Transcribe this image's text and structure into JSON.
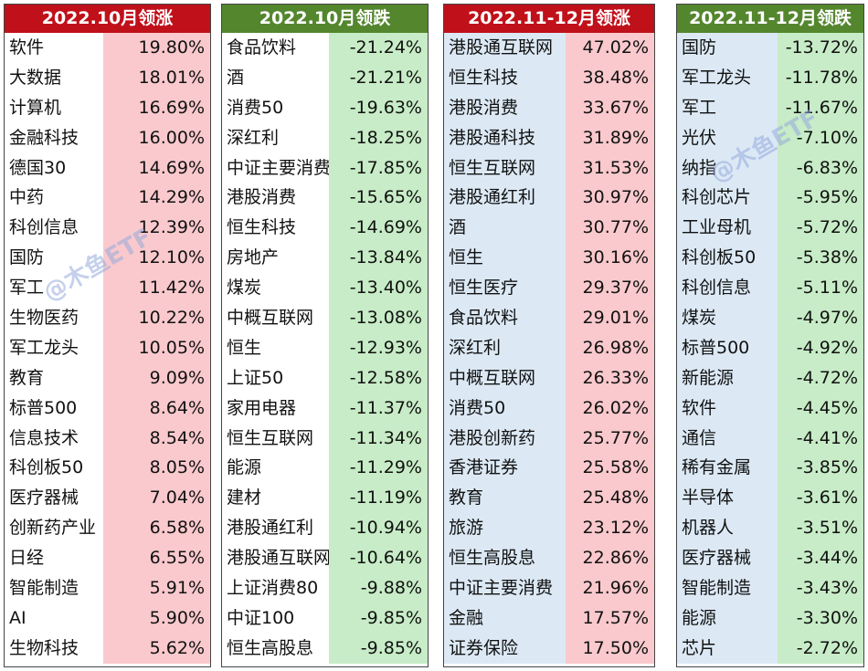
{
  "panels": [
    {
      "title": "2022.10月领涨",
      "rows": [
        {
          "name": "软件",
          "value": "19.80%"
        },
        {
          "name": "大数据",
          "value": "18.01%"
        },
        {
          "name": "计算机",
          "value": "16.69%"
        },
        {
          "name": "金融科技",
          "value": "16.00%"
        },
        {
          "name": "德国30",
          "value": "14.69%"
        },
        {
          "name": "中药",
          "value": "14.29%"
        },
        {
          "name": "科创信息",
          "value": "12.39%"
        },
        {
          "name": "国防",
          "value": "12.10%"
        },
        {
          "name": "军工",
          "value": "11.42%"
        },
        {
          "name": "生物医药",
          "value": "10.22%"
        },
        {
          "name": "军工龙头",
          "value": "10.05%"
        },
        {
          "name": "教育",
          "value": "9.09%"
        },
        {
          "name": "标普500",
          "value": "8.64%"
        },
        {
          "name": "信息技术",
          "value": "8.54%"
        },
        {
          "name": "科创板50",
          "value": "8.05%"
        },
        {
          "name": "医疗器械",
          "value": "7.04%"
        },
        {
          "name": "创新药产业",
          "value": "6.58%"
        },
        {
          "name": "日经",
          "value": "6.55%"
        },
        {
          "name": "智能制造",
          "value": "5.91%"
        },
        {
          "name": "AI",
          "value": "5.90%"
        },
        {
          "name": "生物科技",
          "value": "5.62%"
        }
      ]
    },
    {
      "title": "2022.10月领跌",
      "rows": [
        {
          "name": "食品饮料",
          "value": "-21.24%"
        },
        {
          "name": "酒",
          "value": "-21.21%"
        },
        {
          "name": "消费50",
          "value": "-19.63%"
        },
        {
          "name": "深红利",
          "value": "-18.25%"
        },
        {
          "name": "中证主要消费",
          "value": "-17.85%"
        },
        {
          "name": "港股消费",
          "value": "-15.65%"
        },
        {
          "name": "恒生科技",
          "value": "-14.69%"
        },
        {
          "name": "房地产",
          "value": "-13.84%"
        },
        {
          "name": "煤炭",
          "value": "-13.40%"
        },
        {
          "name": "中概互联网",
          "value": "-13.08%"
        },
        {
          "name": "恒生",
          "value": "-12.93%"
        },
        {
          "name": "上证50",
          "value": "-12.58%"
        },
        {
          "name": "家用电器",
          "value": "-11.37%"
        },
        {
          "name": "恒生互联网",
          "value": "-11.34%"
        },
        {
          "name": "能源",
          "value": "-11.29%"
        },
        {
          "name": "建材",
          "value": "-11.19%"
        },
        {
          "name": "港股通红利",
          "value": "-10.94%"
        },
        {
          "name": "港股通互联网",
          "value": "-10.64%"
        },
        {
          "name": "上证消费80",
          "value": "-9.88%"
        },
        {
          "name": "中证100",
          "value": "-9.85%"
        },
        {
          "name": "恒生高股息",
          "value": "-9.85%"
        }
      ]
    },
    {
      "title": "2022.11-12月领涨",
      "rows": [
        {
          "name": "港股通互联网",
          "value": "47.02%"
        },
        {
          "name": "恒生科技",
          "value": "38.48%"
        },
        {
          "name": "港股消费",
          "value": "33.67%"
        },
        {
          "name": "港股通科技",
          "value": "31.89%"
        },
        {
          "name": "恒生互联网",
          "value": "31.53%"
        },
        {
          "name": "港股通红利",
          "value": "30.97%"
        },
        {
          "name": "酒",
          "value": "30.77%"
        },
        {
          "name": "恒生",
          "value": "30.16%"
        },
        {
          "name": "恒生医疗",
          "value": "29.37%"
        },
        {
          "name": "食品饮料",
          "value": "29.01%"
        },
        {
          "name": "深红利",
          "value": "26.98%"
        },
        {
          "name": "中概互联网",
          "value": "26.33%"
        },
        {
          "name": "消费50",
          "value": "26.02%"
        },
        {
          "name": "港股创新药",
          "value": "25.77%"
        },
        {
          "name": "香港证券",
          "value": "25.58%"
        },
        {
          "name": "教育",
          "value": "25.48%"
        },
        {
          "name": "旅游",
          "value": "23.12%"
        },
        {
          "name": "恒生高股息",
          "value": "22.86%"
        },
        {
          "name": "中证主要消费",
          "value": "21.96%"
        },
        {
          "name": "金融",
          "value": "17.57%"
        },
        {
          "name": "证券保险",
          "value": "17.50%"
        }
      ]
    },
    {
      "title": "2022.11-12月领跌",
      "rows": [
        {
          "name": "国防",
          "value": "-13.72%"
        },
        {
          "name": "军工龙头",
          "value": "-11.78%"
        },
        {
          "name": "军工",
          "value": "-11.67%"
        },
        {
          "name": "光伏",
          "value": "-7.10%"
        },
        {
          "name": "纳指",
          "value": "-6.83%"
        },
        {
          "name": "科创芯片",
          "value": "-5.95%"
        },
        {
          "name": "工业母机",
          "value": "-5.72%"
        },
        {
          "name": "科创板50",
          "value": "-5.38%"
        },
        {
          "name": "科创信息",
          "value": "-5.11%"
        },
        {
          "name": "煤炭",
          "value": "-4.97%"
        },
        {
          "name": "标普500",
          "value": "-4.92%"
        },
        {
          "name": "新能源",
          "value": "-4.72%"
        },
        {
          "name": "软件",
          "value": "-4.45%"
        },
        {
          "name": "通信",
          "value": "-4.41%"
        },
        {
          "name": "稀有金属",
          "value": "-3.85%"
        },
        {
          "name": "半导体",
          "value": "-3.61%"
        },
        {
          "name": "机器人",
          "value": "-3.51%"
        },
        {
          "name": "医疗器械",
          "value": "-3.44%"
        },
        {
          "name": "智能制造",
          "value": "-3.43%"
        },
        {
          "name": "能源",
          "value": "-3.30%"
        },
        {
          "name": "芯片",
          "value": "-2.72%"
        }
      ]
    }
  ],
  "watermark": "@木鱼ETF",
  "colors": {
    "red_header": "#c0101a",
    "green_header": "#54862e",
    "pink_cell": "#f9c9cd",
    "green_cell": "#c7ecc7",
    "blue_cell": "#dce9f5"
  }
}
